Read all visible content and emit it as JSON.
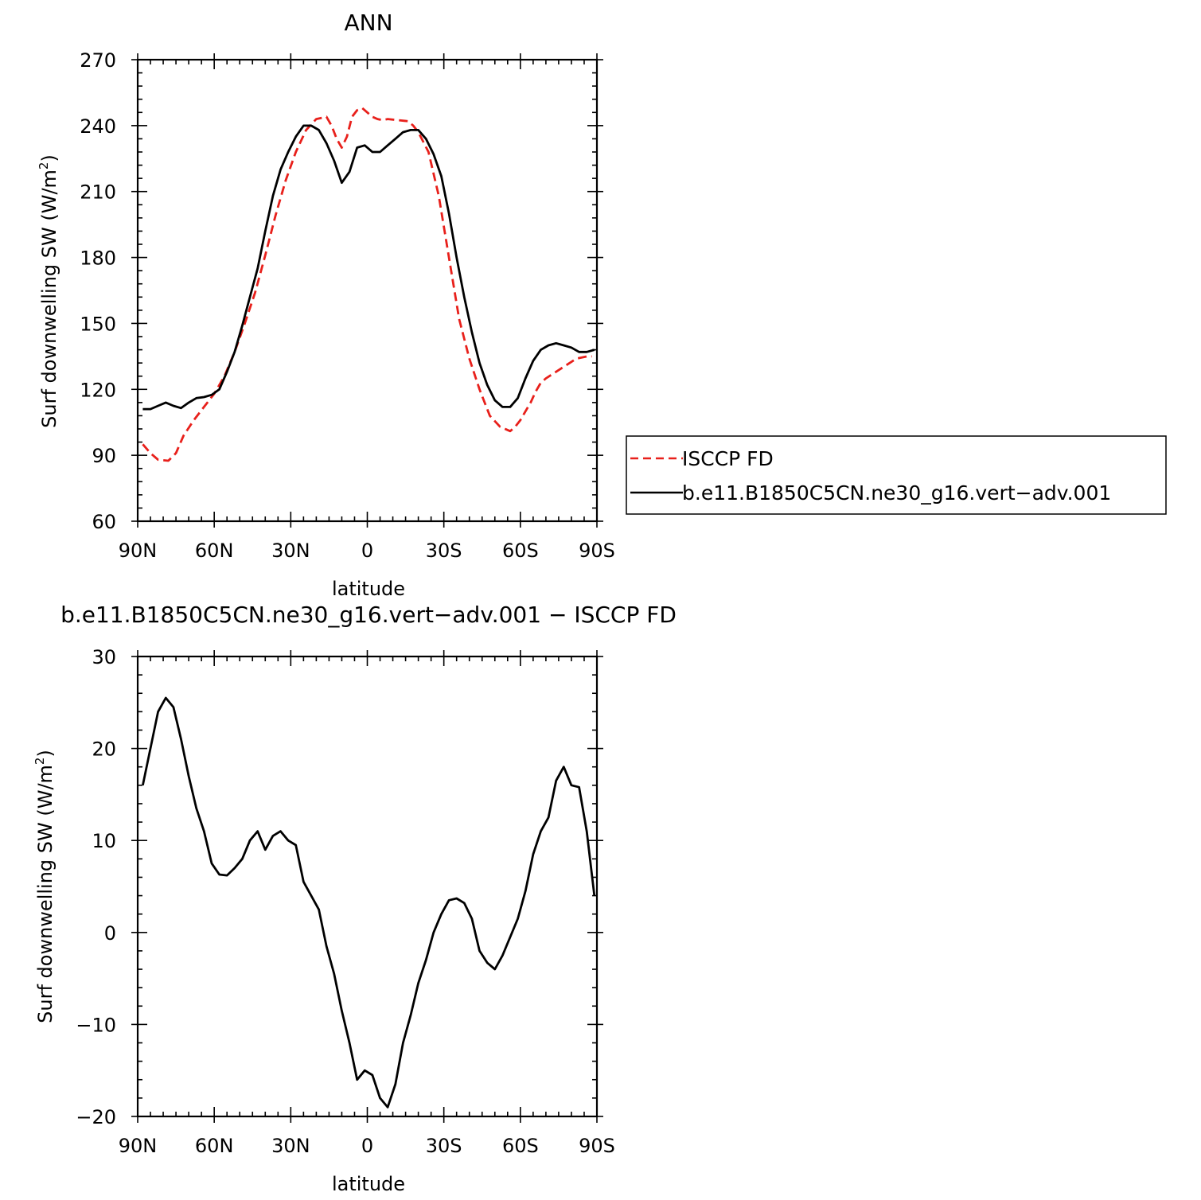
{
  "chart_data": [
    {
      "type": "line",
      "title": "ANN",
      "xlabel": "latitude",
      "ylabel": "Surf downwelling SW (W/m",
      "ylabel_sup": "2",
      "ylabel_close": ")",
      "xlim": [
        90,
        -90
      ],
      "ylim": [
        60,
        270
      ],
      "yticks": [
        60,
        90,
        120,
        150,
        180,
        210,
        240,
        270
      ],
      "xticks": [
        {
          "value": 90,
          "label": "90N"
        },
        {
          "value": 60,
          "label": "60N"
        },
        {
          "value": 30,
          "label": "30N"
        },
        {
          "value": 0,
          "label": "0"
        },
        {
          "value": -30,
          "label": "30S"
        },
        {
          "value": -60,
          "label": "60S"
        },
        {
          "value": -90,
          "label": "90S"
        }
      ],
      "legend": {
        "position": "right",
        "entries": [
          {
            "name": "ISCCP FD",
            "color": "#e8201b",
            "dash": true
          },
          {
            "name": "b.e11.B1850C5CN.ne30_g16.vert−adv.001",
            "color": "#000000",
            "dash": false
          }
        ]
      },
      "series": [
        {
          "name": "ISCCP FD",
          "color": "#e8201b",
          "dash": true,
          "x": [
            88,
            85,
            82,
            78,
            75,
            72,
            68,
            64,
            60,
            56,
            52,
            48,
            44,
            40,
            36,
            32,
            28,
            24,
            20,
            16,
            14,
            12,
            10,
            8,
            6,
            4,
            2,
            0,
            -2,
            -4,
            -6,
            -8,
            -12,
            -16,
            -18,
            -20,
            -24,
            -28,
            -32,
            -36,
            -40,
            -44,
            -48,
            -52,
            -56,
            -58,
            -60,
            -62,
            -64,
            -66,
            -68,
            -70,
            -74,
            -78,
            -82,
            -86,
            -88
          ],
          "values": [
            95,
            91,
            88,
            87.5,
            91,
            99,
            106,
            112,
            118,
            126,
            137,
            150,
            164,
            181,
            199,
            215,
            228,
            238,
            243,
            244,
            240,
            234,
            230,
            235,
            244,
            247,
            248,
            246,
            244,
            243,
            242.5,
            243,
            242.5,
            242,
            240,
            237,
            228,
            208,
            180,
            152,
            134,
            120,
            108,
            103,
            101,
            103,
            106,
            110,
            114,
            119,
            123,
            125,
            128,
            131,
            134,
            135,
            135
          ]
        },
        {
          "name": "b.e11.B1850C5CN.ne30_g16.vert−adv.001",
          "color": "#000000",
          "dash": false,
          "x": [
            88,
            85,
            82,
            79,
            76,
            73,
            70,
            67,
            64,
            61,
            58,
            55,
            52,
            49,
            46,
            43,
            40,
            37,
            34,
            31,
            28,
            25,
            22,
            19,
            16,
            13,
            10,
            7,
            4,
            1,
            -2,
            -5,
            -8,
            -11,
            -14,
            -17,
            -20,
            -23,
            -26,
            -29,
            -32,
            -35,
            -38,
            -41,
            -44,
            -47,
            -50,
            -53,
            -56,
            -59,
            -62,
            -65,
            -68,
            -71,
            -74,
            -77,
            -80,
            -83,
            -86,
            -89
          ],
          "values": [
            111,
            111,
            112.5,
            114,
            112.5,
            111.5,
            114,
            116,
            116.5,
            117.5,
            120,
            128,
            137,
            149,
            162,
            175,
            192,
            208,
            220,
            228,
            235,
            240,
            240,
            238,
            232,
            224,
            214,
            219,
            230,
            231,
            228,
            228,
            231,
            234,
            237,
            238,
            238,
            234,
            227,
            217,
            200,
            180,
            162,
            146,
            132,
            122,
            115,
            112,
            112,
            116,
            125,
            133,
            138,
            140,
            141,
            140,
            139,
            137,
            137,
            138
          ]
        }
      ]
    },
    {
      "type": "line",
      "title": "b.e11.B1850C5CN.ne30_g16.vert−adv.001 − ISCCP FD",
      "xlabel": "latitude",
      "ylabel": "Surf downwelling SW (W/m",
      "ylabel_sup": "2",
      "ylabel_close": ")",
      "xlim": [
        90,
        -90
      ],
      "ylim": [
        -20,
        30
      ],
      "yticks": [
        -20,
        -10,
        0,
        10,
        20,
        30
      ],
      "ytick_labels": [
        "−20",
        "−10",
        "0",
        "10",
        "20",
        "30"
      ],
      "xticks": [
        {
          "value": 90,
          "label": "90N"
        },
        {
          "value": 60,
          "label": "60N"
        },
        {
          "value": 30,
          "label": "30N"
        },
        {
          "value": 0,
          "label": "0"
        },
        {
          "value": -30,
          "label": "30S"
        },
        {
          "value": -60,
          "label": "60S"
        },
        {
          "value": -90,
          "label": "90S"
        }
      ],
      "series": [
        {
          "name": "",
          "color": "#000000",
          "dash": false,
          "x": [
            88,
            85,
            82,
            79,
            76,
            73,
            70,
            67,
            64,
            61,
            58,
            55,
            52,
            49,
            46,
            43,
            40,
            37,
            34,
            31,
            28,
            25,
            22,
            19,
            16,
            13,
            10,
            7,
            4,
            1,
            -2,
            -5,
            -8,
            -11,
            -14,
            -17,
            -20,
            -23,
            -26,
            -29,
            -32,
            -35,
            -38,
            -41,
            -44,
            -47,
            -50,
            -53,
            -56,
            -59,
            -62,
            -65,
            -68,
            -71,
            -74,
            -77,
            -80,
            -83,
            -86,
            -89
          ],
          "values": [
            16,
            20,
            24,
            25.5,
            24.5,
            21,
            17,
            13.5,
            11,
            7.5,
            6.3,
            6.2,
            7,
            8,
            10,
            11,
            9,
            10.5,
            11,
            10,
            9.5,
            5.5,
            4,
            2.5,
            -1.5,
            -4.5,
            -8.5,
            -12,
            -16,
            -15,
            -15.5,
            -18,
            -19,
            -16.5,
            -12,
            -9,
            -5.5,
            -3,
            0,
            2,
            3.5,
            3.7,
            3.2,
            1.5,
            -2,
            -3.3,
            -4,
            -2.5,
            -0.5,
            1.5,
            4.5,
            8.5,
            11,
            12.5,
            16.5,
            18,
            16,
            15.8,
            11,
            4
          ]
        }
      ]
    }
  ]
}
